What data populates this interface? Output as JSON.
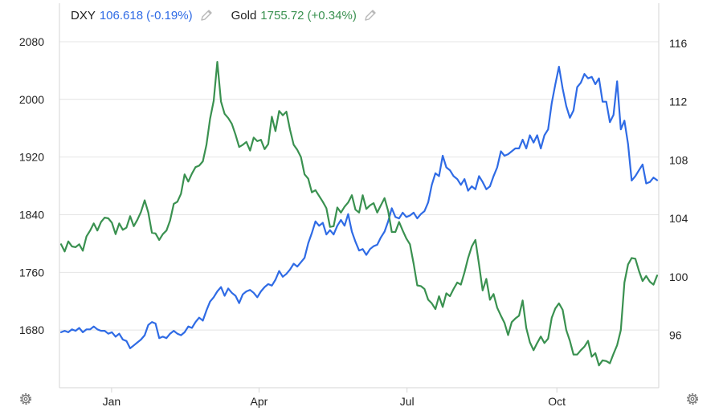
{
  "legend": {
    "dxy": {
      "name": "DXY",
      "value": "106.618",
      "change": "(-0.19%)",
      "color": "#2f6be5",
      "icon": "pencil-icon"
    },
    "gold": {
      "name": "Gold",
      "value": "1755.72",
      "change": "(+0.34%)",
      "color": "#3a9150",
      "icon": "pencil-icon"
    }
  },
  "settings_icons": [
    "gear-icon",
    "gear-icon"
  ],
  "chart_data": {
    "type": "line",
    "x_ticks": [
      "Jan",
      "Apr",
      "Jul",
      "Oct"
    ],
    "left_axis": {
      "ticks": [
        1680,
        1760,
        1840,
        1920,
        2000,
        2080
      ],
      "range": [
        1600,
        2100
      ]
    },
    "right_axis": {
      "ticks": [
        96,
        100,
        104,
        108,
        112,
        116
      ],
      "range": [
        92.4,
        117.1
      ]
    },
    "grid": true,
    "legend_position": "top-left",
    "series": [
      {
        "name": "DXY",
        "axis": "right",
        "color": "#2f6be5",
        "values": [
          96.2,
          96.3,
          96.2,
          96.4,
          96.3,
          96.5,
          96.2,
          96.4,
          96.4,
          96.6,
          96.4,
          96.3,
          96.3,
          96.1,
          96.2,
          95.9,
          96.1,
          95.7,
          95.6,
          95.1,
          95.3,
          95.5,
          95.7,
          96.0,
          96.7,
          96.9,
          96.8,
          95.8,
          95.9,
          95.8,
          96.1,
          96.3,
          96.1,
          96.0,
          96.2,
          96.6,
          96.5,
          96.9,
          97.2,
          97.0,
          97.7,
          98.3,
          98.6,
          99.0,
          99.3,
          98.7,
          99.2,
          98.9,
          98.7,
          98.2,
          98.8,
          99.0,
          99.1,
          98.9,
          98.6,
          99.0,
          99.3,
          99.5,
          99.4,
          99.8,
          100.4,
          100.0,
          100.2,
          100.5,
          100.9,
          100.7,
          101.0,
          101.3,
          102.3,
          103.0,
          103.8,
          103.5,
          103.7,
          102.9,
          103.2,
          102.9,
          103.5,
          103.9,
          103.5,
          104.3,
          103.1,
          102.4,
          101.8,
          101.9,
          101.5,
          101.9,
          102.1,
          102.2,
          102.7,
          103.1,
          103.8,
          104.7,
          104.1,
          104.0,
          104.4,
          104.1,
          104.2,
          104.4,
          104.0,
          104.3,
          104.5,
          105.1,
          106.3,
          107.1,
          106.9,
          108.3,
          107.5,
          107.3,
          106.9,
          106.7,
          106.3,
          106.7,
          105.9,
          106.2,
          106.0,
          106.9,
          106.5,
          106.0,
          106.2,
          106.9,
          107.5,
          108.6,
          108.3,
          108.4,
          108.6,
          108.8,
          108.8,
          109.4,
          108.8,
          109.7,
          109.2,
          109.7,
          108.8,
          109.7,
          110.1,
          111.9,
          113.2,
          114.4,
          112.9,
          111.7,
          110.9,
          111.4,
          113.0,
          113.3,
          113.9,
          113.6,
          113.7,
          113.2,
          113.6,
          112.0,
          112.0,
          110.6,
          111.1,
          113.4,
          110.1,
          110.7,
          109.1,
          106.6,
          106.9,
          107.3,
          107.7,
          106.4,
          106.5,
          106.8,
          106.618
        ]
      },
      {
        "name": "Gold",
        "axis": "left",
        "color": "#3a9150",
        "values": [
          1799,
          1789,
          1803,
          1796,
          1795,
          1799,
          1790,
          1810,
          1818,
          1828,
          1818,
          1830,
          1836,
          1835,
          1829,
          1813,
          1828,
          1819,
          1822,
          1838,
          1824,
          1833,
          1844,
          1860,
          1843,
          1815,
          1814,
          1805,
          1813,
          1818,
          1832,
          1855,
          1858,
          1869,
          1896,
          1886,
          1897,
          1906,
          1908,
          1914,
          1937,
          1973,
          1998,
          2052,
          1997,
          1980,
          1974,
          1966,
          1951,
          1934,
          1937,
          1941,
          1929,
          1947,
          1942,
          1944,
          1931,
          1938,
          1976,
          1956,
          1984,
          1978,
          1983,
          1958,
          1937,
          1930,
          1920,
          1896,
          1890,
          1871,
          1874,
          1866,
          1858,
          1849,
          1823,
          1824,
          1850,
          1843,
          1851,
          1857,
          1867,
          1847,
          1843,
          1867,
          1848,
          1853,
          1856,
          1843,
          1853,
          1863,
          1845,
          1816,
          1816,
          1830,
          1818,
          1807,
          1799,
          1772,
          1742,
          1741,
          1737,
          1722,
          1717,
          1709,
          1727,
          1712,
          1731,
          1727,
          1737,
          1746,
          1743,
          1760,
          1780,
          1796,
          1805,
          1771,
          1735,
          1751,
          1722,
          1730,
          1711,
          1700,
          1690,
          1673,
          1691,
          1696,
          1700,
          1721,
          1683,
          1663,
          1652,
          1662,
          1671,
          1662,
          1668,
          1697,
          1710,
          1717,
          1708,
          1680,
          1665,
          1646,
          1646,
          1652,
          1657,
          1665,
          1643,
          1648,
          1631,
          1638,
          1637,
          1634,
          1647,
          1659,
          1680,
          1746,
          1771,
          1780,
          1779,
          1762,
          1748,
          1755,
          1747,
          1743,
          1755.72
        ]
      }
    ]
  }
}
